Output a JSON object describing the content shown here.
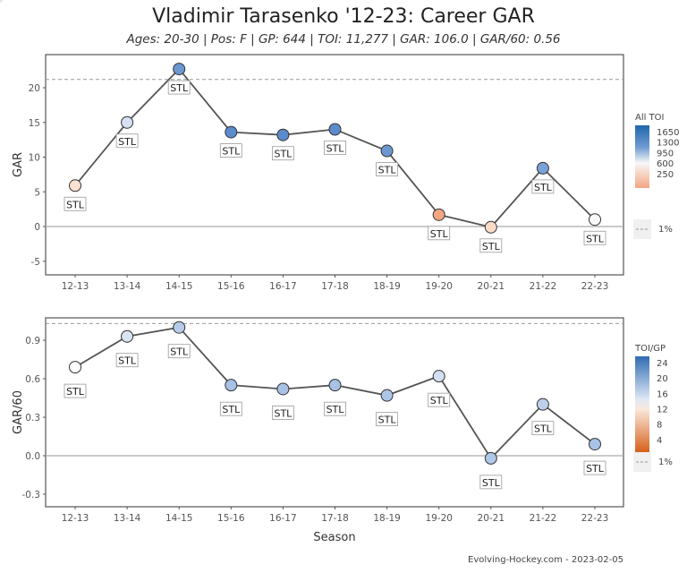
{
  "title": "Vladimir Tarasenko '12-23: Career GAR",
  "subtitle": "Ages: 20-30 | Pos: F | GP: 644 | TOI: 11,277 | GAR: 106.0 | GAR/60: 0.56",
  "credit": "Evolving-Hockey.com - 2023-02-05",
  "chart_data": [
    {
      "type": "line",
      "ylabel": "GAR",
      "xlabel": "",
      "categories": [
        "12-13",
        "13-14",
        "14-15",
        "15-16",
        "16-17",
        "17-18",
        "18-19",
        "19-20",
        "20-21",
        "21-22",
        "22-23"
      ],
      "values": [
        5.9,
        15.0,
        22.7,
        13.6,
        13.2,
        14.0,
        10.9,
        1.7,
        -0.1,
        8.4,
        1.0
      ],
      "point_labels": [
        "STL",
        "STL",
        "STL",
        "STL",
        "STL",
        "STL",
        "STL",
        "STL",
        "STL",
        "STL",
        "STL"
      ],
      "point_colors": [
        "#fbe1d2",
        "#d5e1f3",
        "#6b97d1",
        "#5b8bcc",
        "#5b8bcc",
        "#5b8bcc",
        "#6b97d1",
        "#f4a582",
        "#fbdcc9",
        "#7aa2d6",
        "#fdfbfa"
      ],
      "ylim": [
        -6.5,
        24
      ],
      "yticks": [
        -5,
        0,
        5,
        10,
        15,
        20
      ],
      "reference_line": 21.2,
      "reference_label": "1%",
      "legend": {
        "title": "All TOI",
        "ticks": [
          "1650",
          "1300",
          "950",
          "600",
          "250"
        ],
        "placement": "right"
      },
      "background": "jittered league distribution points (grey)"
    },
    {
      "type": "line",
      "ylabel": "GAR/60",
      "xlabel": "Season",
      "categories": [
        "12-13",
        "13-14",
        "14-15",
        "15-16",
        "16-17",
        "17-18",
        "18-19",
        "19-20",
        "20-21",
        "21-22",
        "22-23"
      ],
      "values": [
        0.69,
        0.93,
        1.0,
        0.55,
        0.52,
        0.55,
        0.47,
        0.62,
        -0.02,
        0.4,
        0.09
      ],
      "point_labels": [
        "STL",
        "STL",
        "STL",
        "STL",
        "STL",
        "STL",
        "STL",
        "STL",
        "STL",
        "STL",
        "STL"
      ],
      "point_colors": [
        "#ffffff",
        "#dae5f4",
        "#b6cbe9",
        "#a8c2e6",
        "#a8c2e6",
        "#a8c2e6",
        "#adc6e7",
        "#d2dff2",
        "#afc7e8",
        "#bccfeb",
        "#a9c3e6"
      ],
      "ylim": [
        -0.6,
        1.08
      ],
      "yticks": [
        -0.3,
        0.0,
        0.3,
        0.6,
        0.9
      ],
      "reference_line": 1.03,
      "reference_label": "1%",
      "legend": {
        "title": "TOI/GP",
        "ticks": [
          "24",
          "20",
          "16",
          "12",
          "8",
          "4"
        ],
        "placement": "right"
      },
      "background": "jittered league distribution points (grey)"
    }
  ]
}
